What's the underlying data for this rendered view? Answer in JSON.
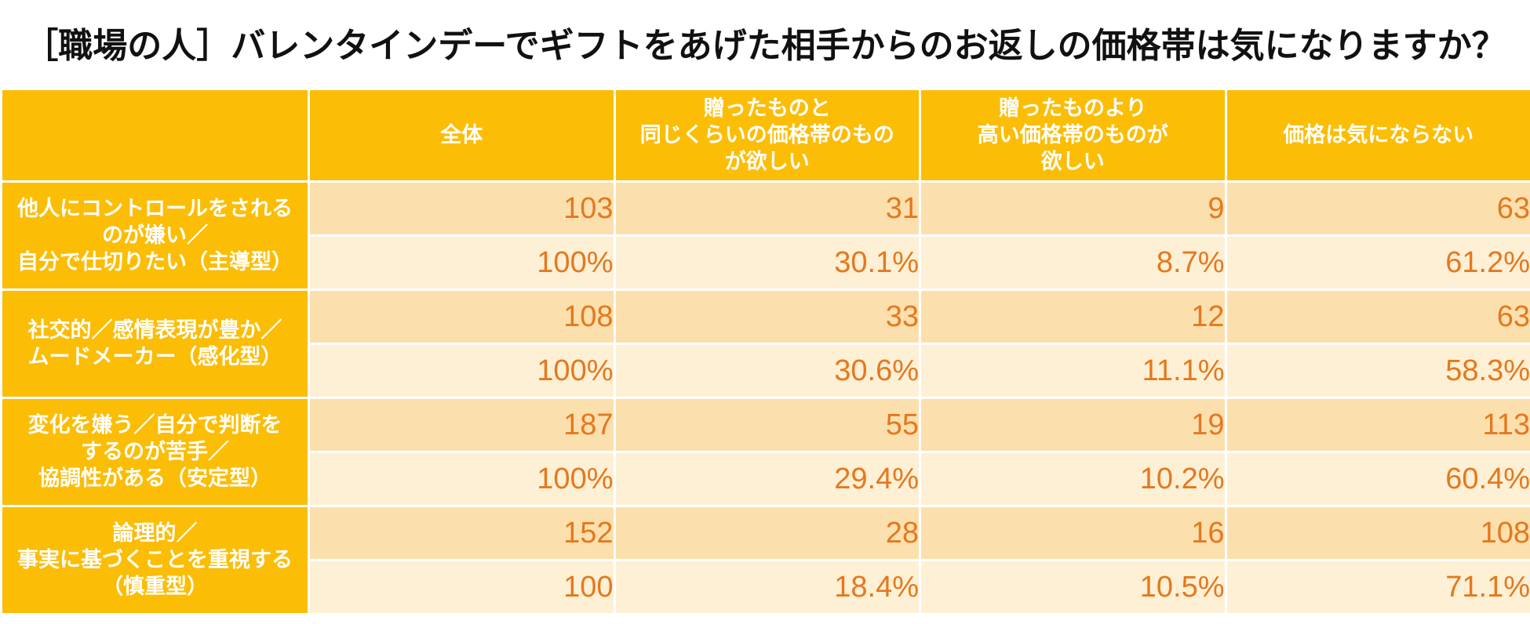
{
  "title": "［職場の人］バレンタインデーでギフトをあげた相手からのお返しの価格帯は気になりますか？",
  "table": {
    "columns": [
      "全体",
      "贈ったものと\n同じくらいの価格帯のもの\nが欲しい",
      "贈ったものより\n高い価格帯のものが\n欲しい",
      "価格は気にならない"
    ],
    "rows": [
      {
        "label": "他人にコントロールをされる\nのが嫌い／\n自分で仕切りたい（主導型）",
        "counts": [
          "103",
          "31",
          "9",
          "63"
        ],
        "percents": [
          "100%",
          "30.1%",
          "8.7%",
          "61.2%"
        ]
      },
      {
        "label": "社交的／感情表現が豊か／\nムードメーカー（感化型）",
        "counts": [
          "108",
          "33",
          "12",
          "63"
        ],
        "percents": [
          "100%",
          "30.6%",
          "11.1%",
          "58.3%"
        ]
      },
      {
        "label": "変化を嫌う／自分で判断を\nするのが苦手／\n協調性がある（安定型）",
        "counts": [
          "187",
          "55",
          "19",
          "113"
        ],
        "percents": [
          "100%",
          "29.4%",
          "10.2%",
          "60.4%"
        ]
      },
      {
        "label": "論理的／\n事実に基づくことを重視する\n（慎重型）",
        "counts": [
          "152",
          "28",
          "16",
          "108"
        ],
        "percents": [
          "100",
          "18.4%",
          "10.5%",
          "71.1%"
        ]
      }
    ]
  },
  "chart_data": {
    "type": "table",
    "title": "［職場の人］バレンタインデーでギフトをあげた相手からのお返しの価格帯は気になりますか？",
    "categories": [
      "主導型",
      "感化型",
      "安定型",
      "慎重型"
    ],
    "series": [
      {
        "name": "全体",
        "values": [
          103,
          108,
          187,
          152
        ],
        "percents": [
          100,
          100,
          100,
          100
        ]
      },
      {
        "name": "贈ったものと同じくらいの価格帯のものが欲しい",
        "values": [
          31,
          33,
          55,
          28
        ],
        "percents": [
          30.1,
          30.6,
          29.4,
          18.4
        ]
      },
      {
        "name": "贈ったものより高い価格帯のものが欲しい",
        "values": [
          9,
          12,
          19,
          16
        ],
        "percents": [
          8.7,
          11.1,
          10.2,
          10.5
        ]
      },
      {
        "name": "価格は気にならない",
        "values": [
          63,
          63,
          113,
          108
        ],
        "percents": [
          61.2,
          58.3,
          60.4,
          71.1
        ]
      }
    ]
  },
  "colors": {
    "header_bg": "#fbbd06",
    "count_bg": "#fbe0ae",
    "percent_bg": "#fdf0d4",
    "value_text": "#e5781f"
  }
}
